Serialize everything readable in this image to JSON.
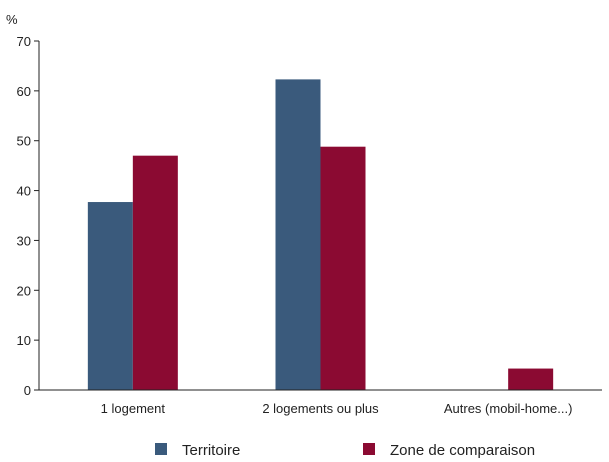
{
  "chart_data": {
    "type": "bar",
    "ylabel": "%",
    "ylim": [
      0,
      70
    ],
    "yticks": [
      0,
      10,
      20,
      30,
      40,
      50,
      60,
      70
    ],
    "categories": [
      "1 logement",
      "2 logements ou plus",
      "Autres (mobil-home...)"
    ],
    "series": [
      {
        "name": "Territoire",
        "color": "#3a5a7c",
        "values": [
          37.7,
          62.3,
          0.1
        ]
      },
      {
        "name": "Zone de comparaison",
        "color": "#8b0a32",
        "values": [
          47.0,
          48.8,
          4.3
        ]
      }
    ],
    "grid": false,
    "legend": "bottom"
  }
}
